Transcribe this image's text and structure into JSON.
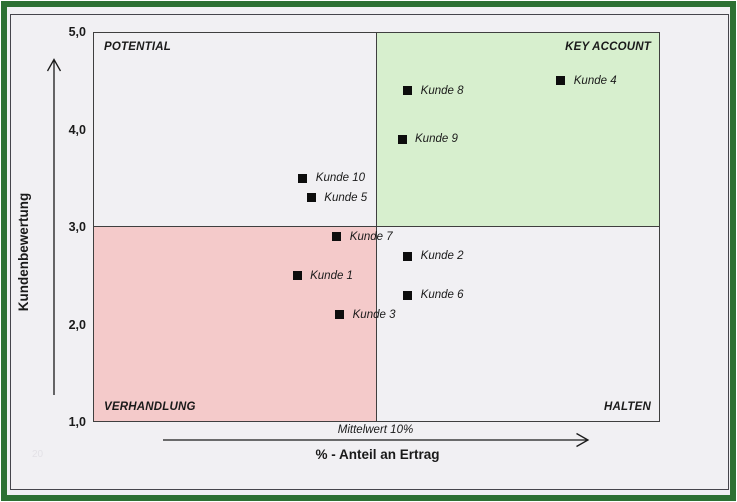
{
  "chart_data": {
    "type": "scatter",
    "title": "",
    "xlabel": "% - Anteil an Ertrag",
    "ylabel": "Kundenbewertung",
    "ylim": [
      1.0,
      5.0
    ],
    "xlim_percent": [
      0,
      20
    ],
    "y_ticks": [
      "5,0",
      "4,0",
      "3,0",
      "2,0",
      "1,0"
    ],
    "y_tick_values": [
      5.0,
      4.0,
      3.0,
      2.0,
      1.0
    ],
    "grid": false,
    "mean_line_label": "Mittelwert 10%",
    "quadrants": {
      "top_left": "POTENTIAL",
      "top_right": "KEY ACCOUNT",
      "bottom_left": "VERHANDLUNG",
      "bottom_right": "HALTEN"
    },
    "points": [
      {
        "label": "Kunde 1",
        "x_percent": 7.2,
        "y": 2.5
      },
      {
        "label": "Kunde 2",
        "x_percent": 11.1,
        "y": 2.7
      },
      {
        "label": "Kunde 3",
        "x_percent": 8.7,
        "y": 2.1
      },
      {
        "label": "Kunde 4",
        "x_percent": 16.5,
        "y": 4.5
      },
      {
        "label": "Kunde 5",
        "x_percent": 7.7,
        "y": 3.3
      },
      {
        "label": "Kunde 6",
        "x_percent": 11.1,
        "y": 2.3
      },
      {
        "label": "Kunde 7",
        "x_percent": 8.6,
        "y": 2.9
      },
      {
        "label": "Kunde 8",
        "x_percent": 11.1,
        "y": 4.4
      },
      {
        "label": "Kunde 9",
        "x_percent": 10.9,
        "y": 3.9
      },
      {
        "label": "Kunde 10",
        "x_percent": 7.4,
        "y": 3.5
      }
    ],
    "marker": "filled-square",
    "legend": "none"
  },
  "watermark": "20",
  "colors": {
    "frame_green": "#2d7033",
    "quadrant_green": "#d7efce",
    "quadrant_pink": "#f4caca",
    "background_gray": "#f1f0f3",
    "line_dark": "#3f3f3f",
    "marker_black": "#0d0d0d"
  }
}
